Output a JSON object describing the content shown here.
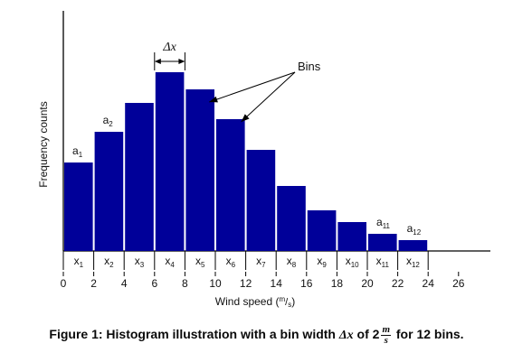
{
  "chart_data": {
    "type": "bar",
    "ylabel": "Frequency counts",
    "xlabel": "Wind speed",
    "xunit": {
      "num": "m",
      "den": "s"
    },
    "bin_width_label": "Δx",
    "bins_annotation": "Bins",
    "bin_edges": [
      0,
      2,
      4,
      6,
      8,
      10,
      12,
      14,
      16,
      18,
      20,
      22,
      24
    ],
    "bin_labels": [
      "x",
      "x",
      "x",
      "x",
      "x",
      "x",
      "x",
      "x",
      "x",
      "x",
      "x",
      "x"
    ],
    "bin_label_subscripts": [
      "1",
      "2",
      "3",
      "4",
      "5",
      "6",
      "7",
      "8",
      "9",
      "10",
      "11",
      "12"
    ],
    "values": [
      98,
      132,
      164,
      198,
      179,
      146,
      112,
      72,
      45,
      32,
      19,
      12
    ],
    "bar_annotations": [
      {
        "index": 0,
        "base": "a",
        "sub": "1"
      },
      {
        "index": 1,
        "base": "a",
        "sub": "2"
      },
      {
        "index": 10,
        "base": "a",
        "sub": "11"
      },
      {
        "index": 11,
        "base": "a",
        "sub": "12"
      }
    ],
    "x_ticks": [
      "0",
      "2",
      "4",
      "6",
      "8",
      "10",
      "12",
      "14",
      "16",
      "18",
      "20",
      "22",
      "24",
      "26"
    ],
    "xlim": [
      0,
      28
    ],
    "ylim": [
      0,
      260
    ],
    "bar_color": "#000099",
    "grid": false,
    "legend": "none"
  },
  "caption": {
    "prefix": "Figure 1: Histogram illustration with a bin width ",
    "math_var": "Δx",
    "of_text": " of 2",
    "frac_num": "m",
    "frac_den": "s",
    "suffix": " for 12 bins."
  }
}
